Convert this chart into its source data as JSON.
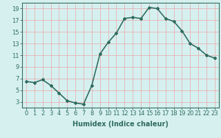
{
  "x": [
    0,
    1,
    2,
    3,
    4,
    5,
    6,
    7,
    8,
    9,
    10,
    11,
    12,
    13,
    14,
    15,
    16,
    17,
    18,
    19,
    20,
    21,
    22,
    23
  ],
  "y": [
    6.5,
    6.3,
    6.8,
    5.8,
    4.5,
    3.2,
    2.8,
    2.6,
    5.8,
    11.2,
    13.2,
    14.8,
    17.3,
    17.5,
    17.3,
    19.2,
    19.0,
    17.3,
    16.8,
    15.2,
    13.0,
    12.2,
    11.0,
    10.5
  ],
  "line_color": "#2e6b5e",
  "marker": "D",
  "marker_size": 2,
  "bg_color": "#d6f0f0",
  "grid_color": "#e8b0b0",
  "title": "",
  "xlabel": "Humidex (Indice chaleur)",
  "ylabel": "",
  "xlim": [
    -0.5,
    23.5
  ],
  "ylim": [
    2,
    20
  ],
  "yticks": [
    3,
    5,
    7,
    9,
    11,
    13,
    15,
    17,
    19
  ],
  "xticks": [
    0,
    1,
    2,
    3,
    4,
    5,
    6,
    7,
    8,
    9,
    10,
    11,
    12,
    13,
    14,
    15,
    16,
    17,
    18,
    19,
    20,
    21,
    22,
    23
  ],
  "xlabel_fontsize": 7,
  "tick_fontsize": 6,
  "line_width": 1.2
}
